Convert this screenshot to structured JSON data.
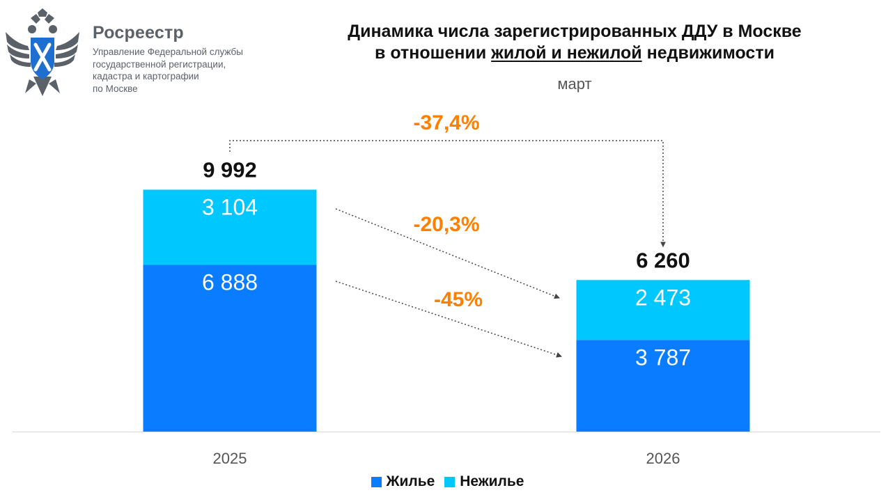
{
  "header": {
    "org_name": "Росреестр",
    "org_sub": [
      "Управление Федеральной службы",
      "государственной регистрации,",
      "кадастра и картографии",
      "по Москве"
    ],
    "logo_icon": "rosreestr-eagle-emblem"
  },
  "title": {
    "line1": "Динамика числа зарегистрированных ДДУ в Москве",
    "line2_pre": "в отношении ",
    "line2_underlined": "жилой и нежилой",
    "line2_post": " недвижимости"
  },
  "subtitle": "март",
  "colors": {
    "residential": "#0a7cff",
    "nonresidential": "#00c8ff",
    "accent": "#ff7f00",
    "axis": "#d9d9d9"
  },
  "chart_data": {
    "type": "bar",
    "stacked": true,
    "categories": [
      "2025",
      "2026"
    ],
    "series": [
      {
        "name": "Жилье",
        "values": [
          6888,
          3787
        ],
        "labels": [
          "6 888",
          "3 787"
        ]
      },
      {
        "name": "Нежилье",
        "values": [
          3104,
          2473
        ],
        "labels": [
          "3 104",
          "2 473"
        ]
      }
    ],
    "totals": [
      9992,
      6260
    ],
    "total_labels": [
      "9 992",
      "6 260"
    ],
    "ylim": [
      0,
      11500
    ],
    "changes": [
      {
        "label": "-37,4%",
        "kind": "total"
      },
      {
        "label": "-20,3%",
        "kind": "nonresidential"
      },
      {
        "label": "-45%",
        "kind": "residential"
      }
    ],
    "legend": [
      "Жилье",
      "Нежилье"
    ],
    "legend_position": "bottom"
  }
}
